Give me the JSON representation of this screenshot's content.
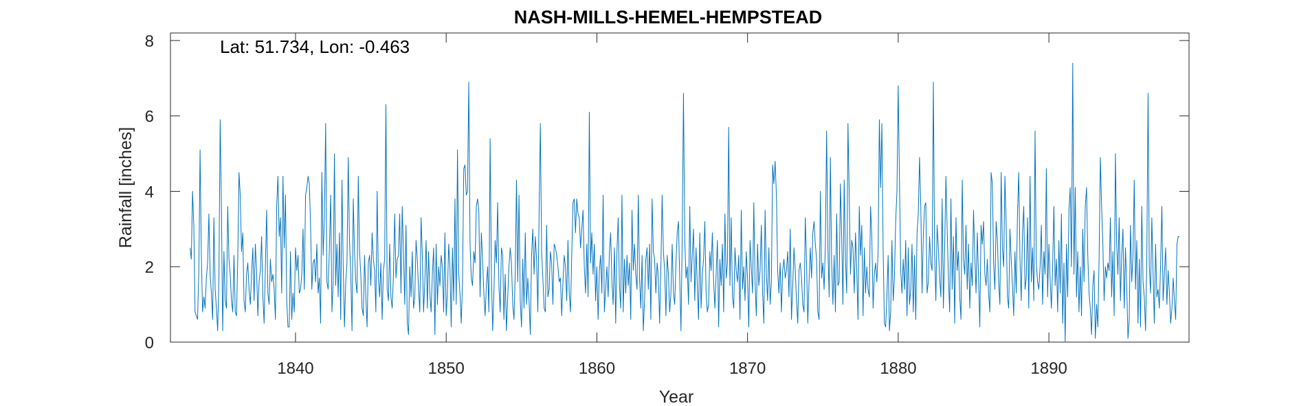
{
  "chart_data": {
    "type": "line",
    "title": "NASH-MILLS-HEMEL-HEMPSTEAD",
    "xlabel": "Year",
    "ylabel": "Rainfall [inches]",
    "annotation": "Lat: 51.734, Lon: -0.463",
    "xlim": [
      1831.7,
      1899.3
    ],
    "ylim": [
      0,
      8.2
    ],
    "xticks": [
      1840,
      1850,
      1860,
      1870,
      1880,
      1890
    ],
    "yticks": [
      0,
      2,
      4,
      6,
      8
    ],
    "grid": false,
    "line_color": "#0072BD",
    "x_start": 1833.0,
    "x_step": 0.08333,
    "series": [
      {
        "values": [
          2.5,
          2.2,
          4.0,
          3.1,
          0.8,
          0.7,
          0.6,
          1.9,
          5.1,
          2.3,
          0.8,
          1.2,
          0.9,
          1.7,
          2.1,
          3.4,
          1.8,
          1.3,
          0.6,
          3.3,
          1.4,
          0.9,
          0.3,
          1.7,
          5.9,
          3.6,
          0.3,
          2.4,
          1.1,
          0.9,
          3.6,
          2.2,
          1.8,
          1.1,
          0.8,
          2.3,
          0.8,
          0.7,
          2.2,
          4.5,
          3.9,
          2.4,
          2.9,
          1.1,
          0.8,
          1.8,
          2.1,
          1.4,
          1.0,
          1.8,
          2.5,
          1.1,
          2.6,
          1.9,
          0.7,
          1.6,
          1.9,
          2.8,
          1.2,
          0.5,
          2.0,
          3.5,
          1.3,
          1.0,
          2.2,
          1.6,
          1.8,
          1.4,
          0.6,
          3.6,
          4.4,
          2.8,
          3.3,
          1.3,
          4.4,
          2.5,
          3.9,
          1.1,
          0.4,
          0.4,
          2.4,
          0.6,
          1.3,
          0.8,
          2.5,
          1.9,
          2.3,
          1.3,
          1.4,
          1.8,
          3.0,
          1.4,
          3.9,
          4.1,
          4.4,
          4.2,
          3.1,
          1.4,
          2.1,
          2.2,
          1.6,
          2.6,
          1.3,
          1.7,
          0.5,
          4.5,
          2.3,
          3.3,
          5.8,
          1.6,
          1.4,
          2.5,
          3.9,
          0.8,
          1.6,
          5.0,
          1.5,
          2.6,
          1.2,
          2.9,
          0.6,
          4.3,
          2.0,
          0.4,
          1.6,
          2.1,
          4.9,
          2.7,
          1.8,
          0.3,
          3.8,
          2.4,
          1.6,
          1.3,
          4.4,
          2.4,
          1.8,
          0.9,
          0.7,
          2.3,
          1.2,
          0.4,
          2.1,
          2.3,
          1.5,
          2.9,
          2.2,
          1.9,
          0.8,
          4.0,
          1.7,
          1.2,
          2.1,
          0.6,
          1.9,
          2.2,
          6.3,
          1.4,
          1.1,
          2.6,
          1.2,
          0.9,
          1.8,
          3.4,
          1.7,
          2.2,
          2.3,
          3.4,
          1.3,
          3.6,
          2.4,
          1.0,
          3.1,
          0.5,
          0.2,
          2.0,
          1.2,
          2.4,
          0.9,
          1.2,
          2.7,
          2.2,
          1.4,
          0.8,
          3.3,
          2.3,
          0.8,
          1.6,
          2.7,
          0.9,
          2.4,
          1.3,
          0.8,
          1.8,
          2.5,
          0.2,
          2.6,
          1.0,
          2.0,
          1.5,
          2.3,
          2.0,
          0.8,
          2.9,
          0.7,
          1.3,
          2.6,
          2.0,
          0.4,
          2.5,
          1.1,
          3.8,
          1.0,
          5.1,
          1.8,
          1.3,
          0.5,
          1.6,
          4.6,
          4.7,
          3.9,
          4.0,
          6.9,
          2.6,
          1.7,
          1.5,
          2.4,
          2.1,
          3.6,
          3.8,
          3.5,
          1.2,
          2.9,
          2.2,
          1.3,
          0.7,
          1.5,
          2.0,
          0.8,
          5.4,
          1.9,
          0.3,
          1.3,
          2.7,
          2.1,
          3.7,
          1.5,
          0.8,
          2.5,
          2.3,
          0.6,
          1.8,
          0.3,
          1.2,
          2.0,
          2.5,
          2.1,
          1.0,
          0.6,
          1.8,
          4.3,
          1.6,
          3.9,
          1.1,
          0.4,
          2.2,
          0.9,
          2.9,
          1.0,
          1.7,
          1.1,
          0.2,
          2.3,
          3.0,
          1.8,
          2.8,
          2.2,
          0.8,
          3.4,
          5.8,
          2.4,
          1.7,
          0.9,
          0.8,
          3.1,
          1.2,
          1.4,
          2.4,
          2.1,
          1.0,
          2.6,
          2.5,
          2.3,
          2.0,
          1.6,
          1.7,
          0.7,
          1.6,
          2.3,
          2.0,
          1.1,
          2.7,
          1.3,
          0.8,
          2.3,
          3.7,
          3.8,
          2.9,
          3.8,
          3.4,
          3.3,
          2.5,
          3.0,
          3.5,
          2.0,
          1.3,
          2.6,
          1.2,
          6.1,
          2.1,
          2.9,
          1.8,
          2.6,
          1.1,
          2.0,
          0.6,
          1.9,
          2.3,
          1.3,
          3.9,
          0.8,
          1.4,
          2.0,
          1.2,
          2.4,
          2.9,
          1.6,
          1.0,
          2.5,
          0.5,
          2.4,
          3.3,
          1.5,
          0.9,
          3.9,
          0.8,
          2.2,
          1.3,
          2.3,
          1.5,
          2.1,
          0.6,
          3.5,
          1.9,
          2.6,
          1.8,
          1.4,
          3.9,
          1.7,
          0.9,
          2.3,
          0.3,
          1.1,
          2.2,
          2.5,
          1.4,
          2.6,
          0.6,
          3.8,
          2.4,
          2.2,
          1.3,
          2.1,
          1.7,
          0.5,
          2.0,
          3.9,
          2.4,
          1.9,
          0.7,
          2.3,
          1.8,
          0.8,
          1.3,
          2.6,
          1.3,
          1.0,
          2.1,
          2.9,
          3.2,
          1.7,
          0.3,
          2.8,
          6.6,
          2.7,
          1.7,
          2.0,
          1.0,
          3.6,
          1.6,
          2.3,
          3.0,
          1.1,
          2.5,
          1.5,
          0.6,
          2.9,
          0.9,
          1.8,
          2.2,
          3.2,
          1.3,
          0.8,
          1.0,
          2.4,
          1.9,
          2.9,
          1.6,
          0.9,
          1.8,
          2.7,
          0.4,
          2.2,
          1.5,
          2.6,
          0.8,
          3.4,
          1.7,
          2.1,
          5.7,
          1.5,
          3.3,
          1.2,
          0.9,
          2.5,
          1.9,
          1.6,
          2.3,
          0.6,
          3.5,
          1.4,
          2.0,
          1.1,
          2.4,
          1.7,
          0.4,
          2.7,
          2.0,
          1.3,
          3.7,
          1.6,
          0.7,
          2.6,
          1.5,
          1.9,
          3.1,
          1.3,
          0.5,
          3.5,
          1.8,
          1.1,
          2.5,
          1.0,
          1.6,
          4.7,
          4.2,
          4.8,
          3.9,
          1.9,
          1.3,
          2.1,
          0.8,
          1.9,
          2.2,
          1.7,
          1.9,
          2.4,
          1.2,
          3.0,
          0.6,
          1.5,
          2.5,
          1.9,
          1.1,
          0.5,
          1.9,
          2.1,
          1.7,
          1.0,
          0.8,
          3.3,
          2.1,
          0.5,
          1.6,
          2.5,
          1.7,
          2.9,
          3.2,
          2.6,
          2.2,
          0.8,
          0.6,
          4.0,
          1.7,
          2.1,
          1.4,
          2.6,
          5.6,
          2.5,
          1.2,
          4.9,
          2.1,
          1.0,
          2.3,
          0.8,
          3.4,
          1.5,
          1.6,
          4.2,
          2.8,
          1.0,
          4.3,
          2.2,
          1.3,
          5.8,
          3.9,
          1.8,
          2.7,
          2.5,
          1.3,
          2.9,
          1.9,
          0.6,
          3.6,
          2.3,
          3.1,
          0.7,
          2.5,
          1.3,
          2.0,
          1.4,
          1.2,
          3.6,
          2.8,
          0.9,
          1.8,
          2.1,
          1.6,
          2.4,
          5.9,
          4.1,
          5.8,
          2.5,
          0.5,
          0.4,
          1.2,
          2.3,
          0.3,
          0.8,
          2.7,
          1.1,
          1.7,
          3.2,
          4.0,
          6.8,
          4.3,
          1.9,
          1.3,
          2.2,
          1.4,
          2.7,
          0.7,
          2.5,
          1.0,
          1.4,
          2.6,
          0.8,
          2.3,
          0.6,
          2.9,
          3.4,
          4.9,
          3.6,
          1.3,
          2.8,
          3.6,
          3.7,
          1.3,
          1.6,
          2.8,
          2.1,
          1.9,
          6.9,
          2.4,
          1.1,
          3.1,
          2.5,
          1.7,
          1.2,
          3.8,
          0.9,
          2.5,
          4.4,
          3.0,
          1.7,
          0.8,
          3.8,
          1.4,
          2.8,
          0.5,
          3.3,
          1.9,
          2.4,
          1.2,
          0.6,
          4.3,
          2.2,
          1.8,
          3.1,
          1.4,
          2.6,
          0.9,
          2.1,
          1.5,
          3.5,
          2.3,
          1.3,
          2.9,
          1.7,
          0.4,
          3.1,
          2.6,
          3.2,
          1.8,
          1.5,
          2.2,
          1.3,
          0.8,
          4.5,
          4.2,
          2.1,
          1.4,
          3.2,
          2.7,
          1.6,
          1.0,
          4.5,
          2.5,
          2.0,
          4.4,
          3.1,
          1.2,
          0.9,
          3.0,
          2.2,
          1.5,
          0.7,
          2.4,
          1.3,
          3.4,
          4.5,
          2.2,
          1.1,
          2.9,
          3.6,
          1.4,
          1.7,
          3.3,
          0.9,
          4.4,
          1.6,
          2.5,
          1.1,
          5.6,
          2.1,
          1.6,
          1.4,
          2.0,
          3.1,
          1.0,
          2.4,
          1.8,
          4.6,
          1.2,
          2.6,
          1.7,
          0.9,
          2.0,
          3.6,
          1.5,
          2.2,
          0.8,
          2.7,
          1.3,
          3.4,
          0.5,
          2.1,
          0.0,
          2.6,
          1.2,
          3.5,
          4.1,
          2.0,
          7.4,
          1.8,
          4.1,
          1.2,
          2.4,
          0.8,
          2.0,
          0.7,
          3.0,
          1.6,
          3.6,
          4.1,
          2.3,
          1.3,
          0.9,
          0.2,
          1.5,
          1.9,
          0.1,
          1.0,
          0.4,
          2.2,
          4.9,
          3.6,
          2.6,
          1.1,
          2.0,
          1.7,
          2.1,
          1.9,
          3.3,
          1.2,
          2.4,
          0.7,
          5.0,
          2.6,
          1.8,
          3.3,
          1.1,
          2.3,
          3.0,
          0.9,
          2.5,
          1.5,
          0.1,
          0.6,
          3.1,
          1.6,
          2.3,
          4.3,
          1.4,
          2.7,
          0.5,
          2.2,
          0.4,
          3.6,
          1.6,
          1.2,
          0.3,
          2.2,
          6.6,
          2.0,
          1.3,
          3.3,
          1.8,
          0.5,
          2.6,
          1.2,
          1.4,
          0.9,
          2.1,
          3.6,
          1.1,
          1.8,
          2.5,
          1.0,
          1.9,
          1.3,
          0.5,
          0.9,
          1.7,
          1.1,
          0.6,
          2.6,
          2.8,
          2.8
        ]
      }
    ]
  }
}
